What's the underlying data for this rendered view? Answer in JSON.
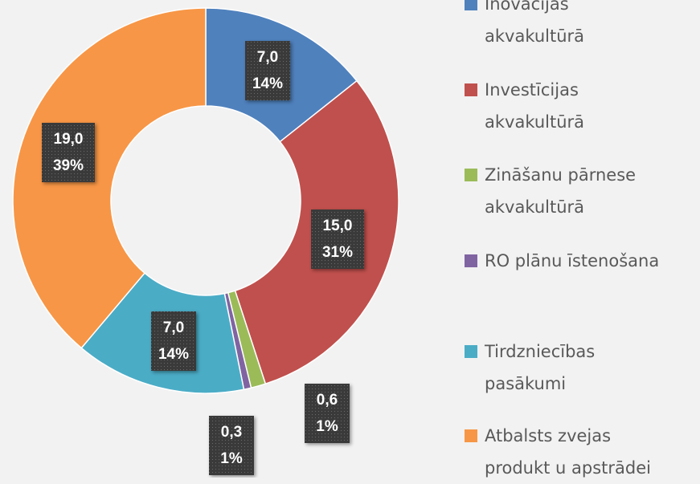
{
  "chart_data": {
    "type": "donut",
    "categories": [
      "Inovācijas\nakvakultūrā",
      "Investīcijas\nakvakultūrā",
      "Zināšanu pārnese\nakvakultūrā",
      "RO plānu īstenošana",
      "Tirdzniecības\npasākumi",
      "Atbalsts zvejas\nprodukt u apstrādei"
    ],
    "values": [
      7.0,
      15.0,
      0.6,
      0.3,
      7.0,
      19.0
    ],
    "value_labels": [
      "7,0",
      "15,0",
      "0,6",
      "0,3",
      "7,0",
      "19,0"
    ],
    "percent_labels": [
      "14%",
      "31%",
      "1%",
      "1%",
      "14%",
      "39%"
    ],
    "colors": [
      "#4f81bd",
      "#c0504d",
      "#9bbb59",
      "#8064a2",
      "#4bacc6",
      "#f79646"
    ],
    "legend": "right"
  }
}
